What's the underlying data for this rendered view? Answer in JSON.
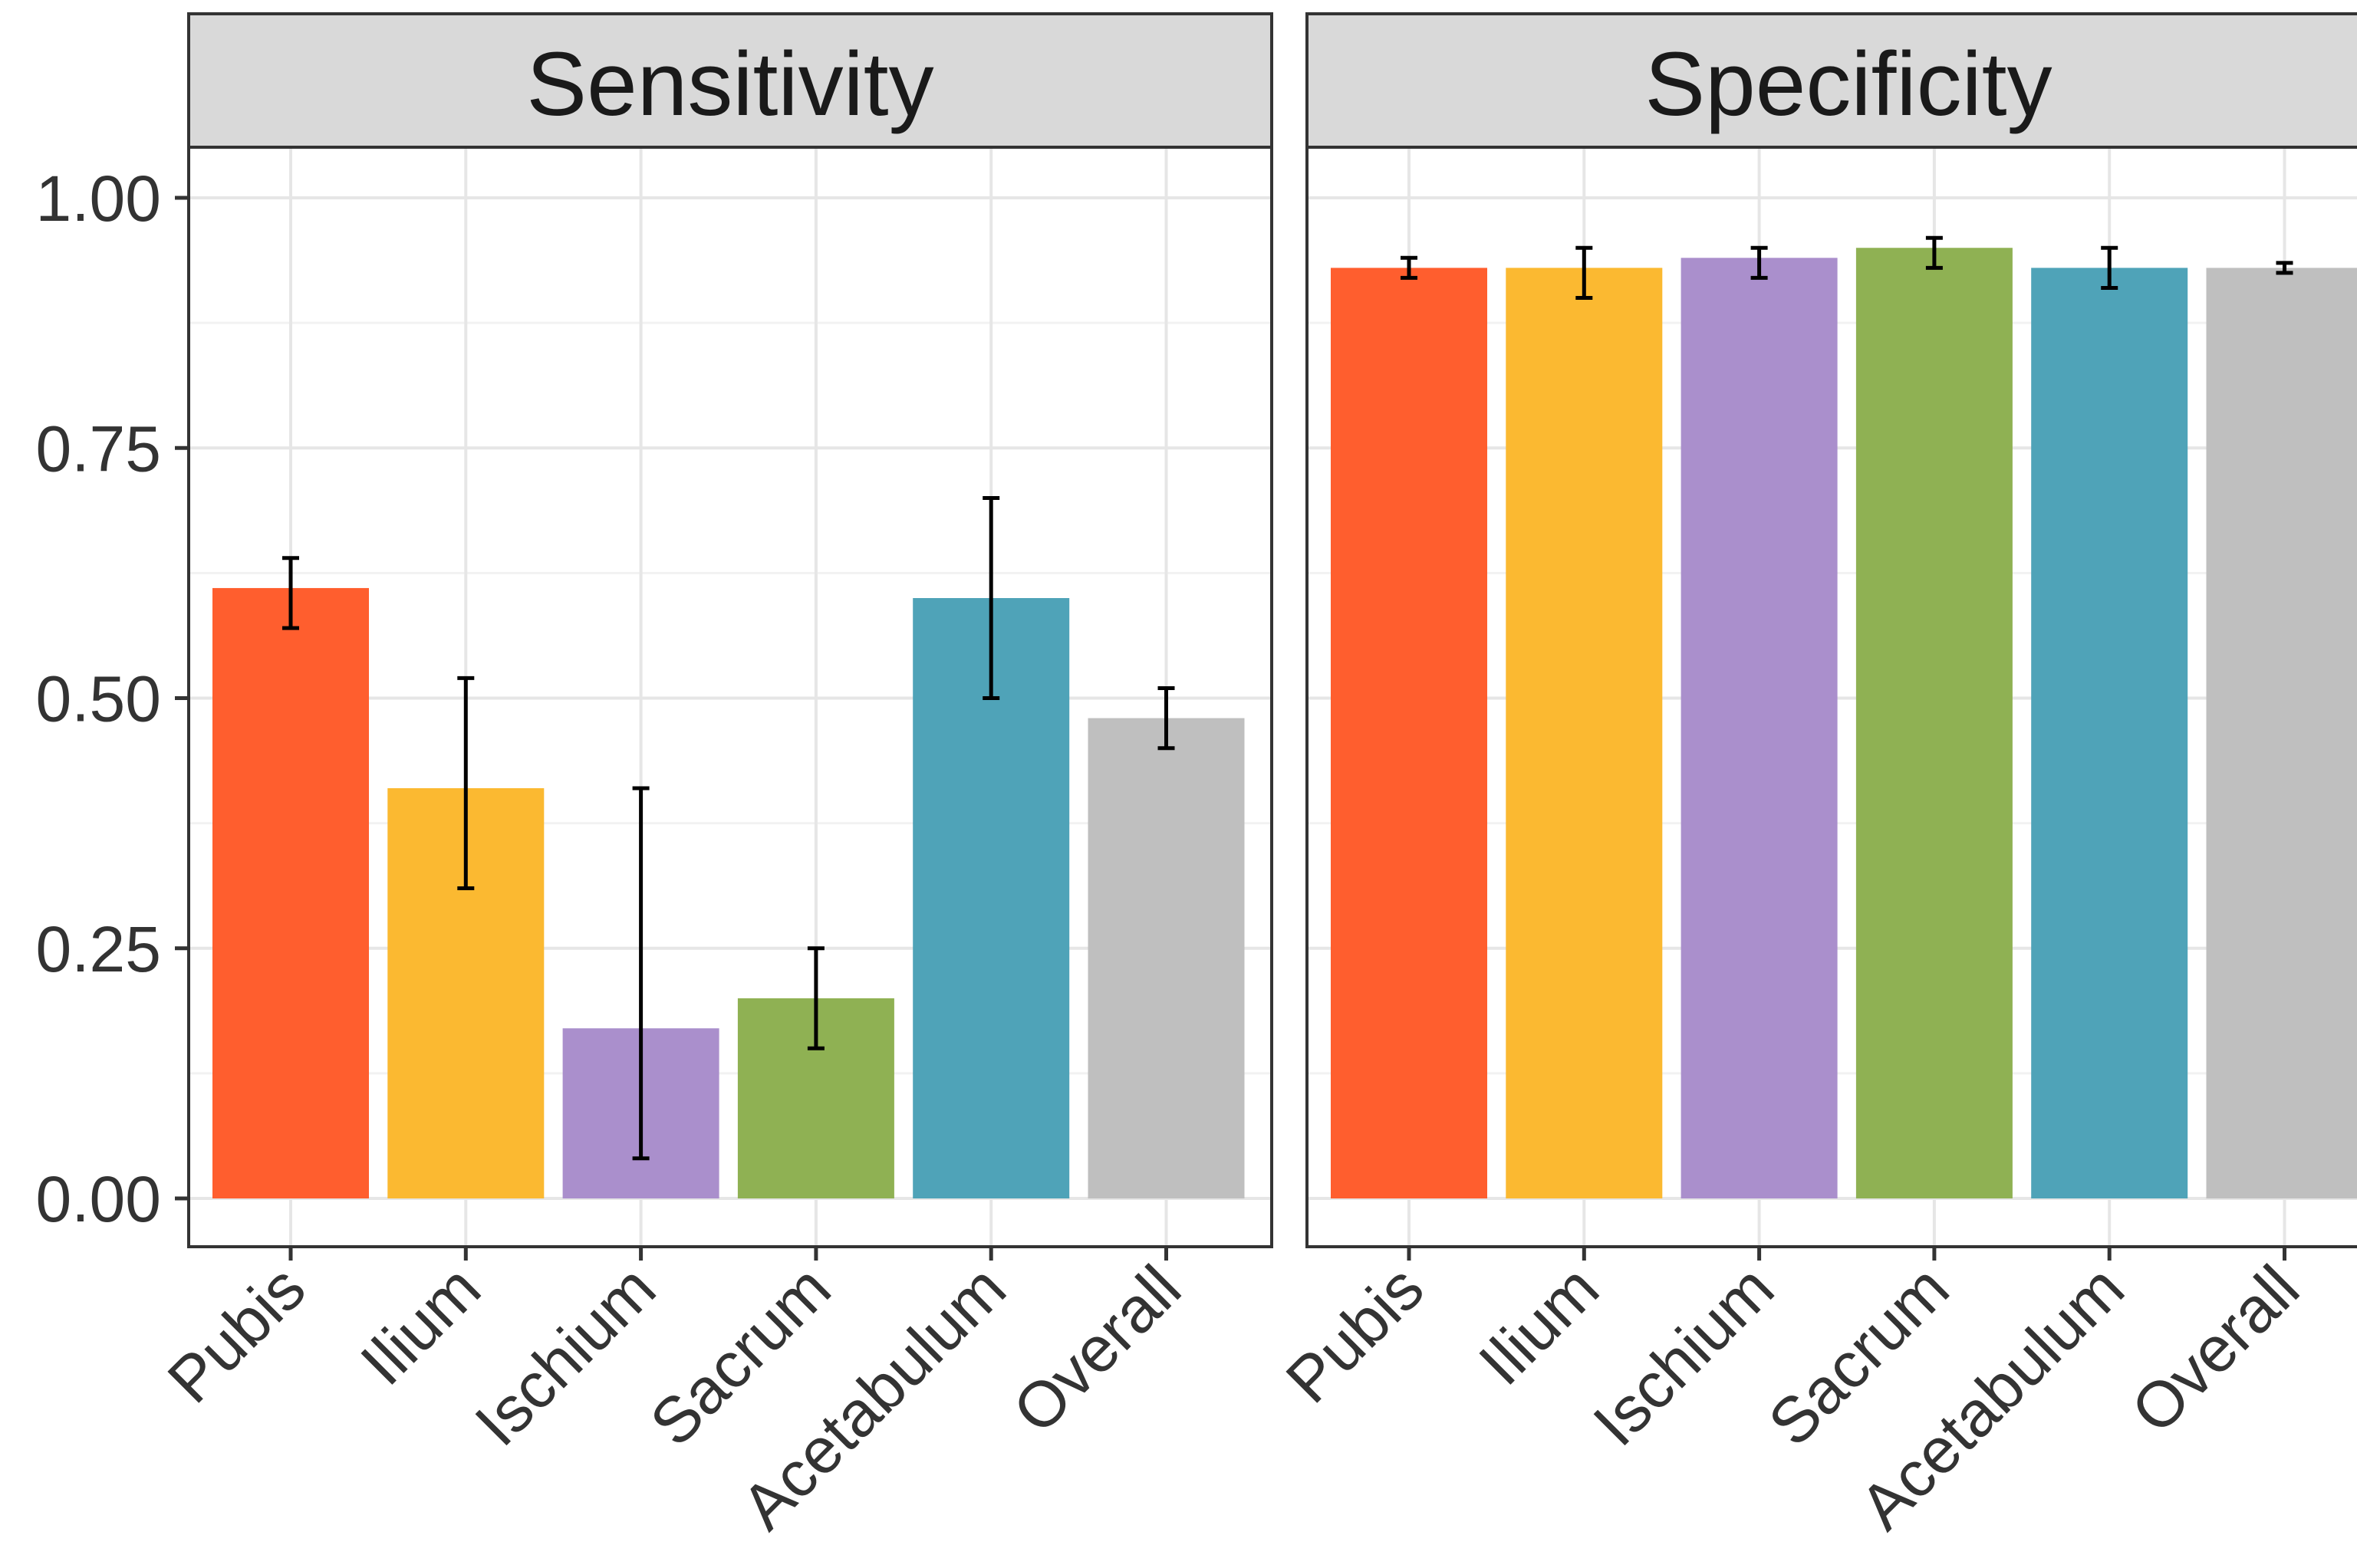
{
  "chart_data": {
    "type": "bar",
    "categories": [
      "Pubis",
      "Ilium",
      "Ischium",
      "Sacrum",
      "Acetabulum",
      "Overall"
    ],
    "colors": [
      "#ff5e2e",
      "#fbb931",
      "#aa8fcc",
      "#8fb153",
      "#4fa3b8",
      "#bfbfbf"
    ],
    "ylim": [
      0,
      1.05
    ],
    "yticks": [
      "0.00",
      "0.25",
      "0.50",
      "0.75",
      "1.00"
    ],
    "ytick_values": [
      0,
      0.25,
      0.5,
      0.75,
      1.0
    ],
    "grid": true,
    "legend": "none",
    "panels": [
      {
        "title": "Sensitivity",
        "values": [
          0.61,
          0.41,
          0.17,
          0.2,
          0.6,
          0.48
        ],
        "error_low": [
          0.57,
          0.31,
          0.04,
          0.15,
          0.5,
          0.45
        ],
        "error_high": [
          0.64,
          0.52,
          0.41,
          0.25,
          0.7,
          0.51
        ]
      },
      {
        "title": "Specificity",
        "values": [
          0.93,
          0.93,
          0.94,
          0.95,
          0.93,
          0.93
        ],
        "error_low": [
          0.92,
          0.9,
          0.92,
          0.93,
          0.91,
          0.925
        ],
        "error_high": [
          0.94,
          0.95,
          0.95,
          0.96,
          0.95,
          0.935
        ]
      }
    ]
  }
}
